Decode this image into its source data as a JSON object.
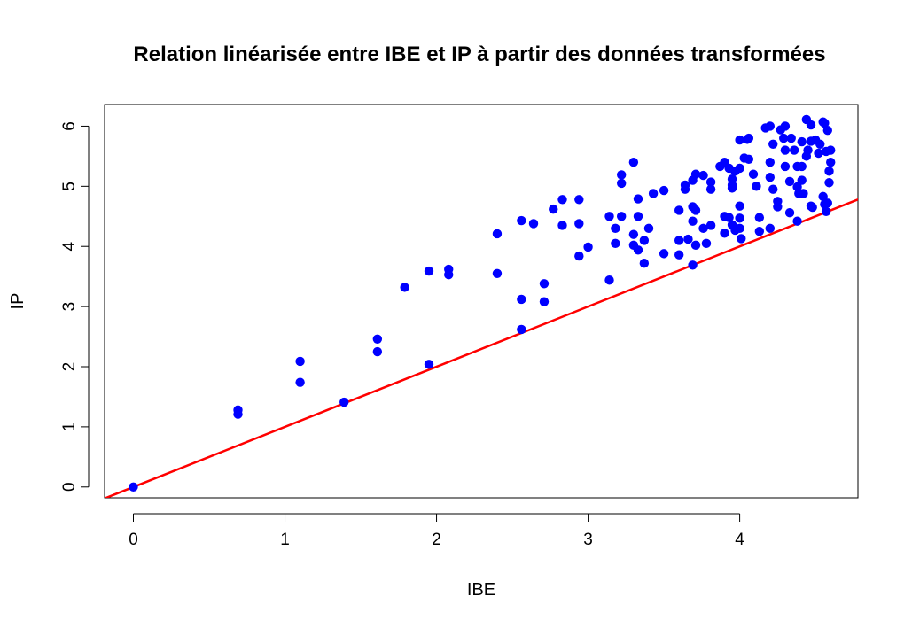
{
  "chart_data": {
    "type": "scatter",
    "title": "Relation linéarisée entre IBE et IP à partir des données transformées",
    "xlabel": "IBE",
    "ylabel": "IP",
    "xlim": [
      -0.19,
      4.78
    ],
    "ylim": [
      -0.18,
      6.36
    ],
    "xticks": [
      0,
      1,
      2,
      3,
      4
    ],
    "yticks": [
      0,
      1,
      2,
      3,
      4,
      5,
      6
    ],
    "grid": false,
    "legend": "none",
    "point_color": "#0000ff",
    "line_color": "#ff0000",
    "reference_line": {
      "slope": 1.0,
      "intercept": 0.0
    },
    "points": [
      [
        0.0,
        0.0
      ],
      [
        0.69,
        1.28
      ],
      [
        0.69,
        1.21
      ],
      [
        1.1,
        2.09
      ],
      [
        1.1,
        1.74
      ],
      [
        1.39,
        1.41
      ],
      [
        1.61,
        2.46
      ],
      [
        1.61,
        2.25
      ],
      [
        1.79,
        3.32
      ],
      [
        1.95,
        3.59
      ],
      [
        1.95,
        2.04
      ],
      [
        2.08,
        3.62
      ],
      [
        2.08,
        3.53
      ],
      [
        2.4,
        4.21
      ],
      [
        2.4,
        3.55
      ],
      [
        2.56,
        4.43
      ],
      [
        2.56,
        3.12
      ],
      [
        2.56,
        2.62
      ],
      [
        2.64,
        4.38
      ],
      [
        2.71,
        3.38
      ],
      [
        2.71,
        3.08
      ],
      [
        2.77,
        4.62
      ],
      [
        2.83,
        4.78
      ],
      [
        2.83,
        4.35
      ],
      [
        2.94,
        4.78
      ],
      [
        2.94,
        4.38
      ],
      [
        2.94,
        3.84
      ],
      [
        3.0,
        3.99
      ],
      [
        3.14,
        4.5
      ],
      [
        3.14,
        3.44
      ],
      [
        3.18,
        4.3
      ],
      [
        3.18,
        4.05
      ],
      [
        3.22,
        5.19
      ],
      [
        3.22,
        5.05
      ],
      [
        3.22,
        4.5
      ],
      [
        3.3,
        5.4
      ],
      [
        3.3,
        4.2
      ],
      [
        3.3,
        4.02
      ],
      [
        3.33,
        4.79
      ],
      [
        3.33,
        4.5
      ],
      [
        3.33,
        3.94
      ],
      [
        3.37,
        4.1
      ],
      [
        3.37,
        3.72
      ],
      [
        3.4,
        4.3
      ],
      [
        3.43,
        4.88
      ],
      [
        3.5,
        4.93
      ],
      [
        3.5,
        3.88
      ],
      [
        3.6,
        4.6
      ],
      [
        3.6,
        4.1
      ],
      [
        3.6,
        3.86
      ],
      [
        3.64,
        4.95
      ],
      [
        3.64,
        5.02
      ],
      [
        3.66,
        4.12
      ],
      [
        3.69,
        5.1
      ],
      [
        3.69,
        4.66
      ],
      [
        3.69,
        4.42
      ],
      [
        3.69,
        3.69
      ],
      [
        3.71,
        5.2
      ],
      [
        3.71,
        4.6
      ],
      [
        3.71,
        4.02
      ],
      [
        3.76,
        5.18
      ],
      [
        3.76,
        4.3
      ],
      [
        3.78,
        4.05
      ],
      [
        3.81,
        5.07
      ],
      [
        3.81,
        4.95
      ],
      [
        3.81,
        4.35
      ],
      [
        3.87,
        5.33
      ],
      [
        3.9,
        5.4
      ],
      [
        3.9,
        4.22
      ],
      [
        3.9,
        4.5
      ],
      [
        3.93,
        5.3
      ],
      [
        3.93,
        4.48
      ],
      [
        3.95,
        5.02
      ],
      [
        3.95,
        5.12
      ],
      [
        3.95,
        4.97
      ],
      [
        3.95,
        4.36
      ],
      [
        3.97,
        5.25
      ],
      [
        3.97,
        4.27
      ],
      [
        4.0,
        5.77
      ],
      [
        4.0,
        5.3
      ],
      [
        4.0,
        4.67
      ],
      [
        4.0,
        4.47
      ],
      [
        4.0,
        4.3
      ],
      [
        4.01,
        4.13
      ],
      [
        4.03,
        5.47
      ],
      [
        4.05,
        5.78
      ],
      [
        4.06,
        5.8
      ],
      [
        4.06,
        5.45
      ],
      [
        4.09,
        5.2
      ],
      [
        4.11,
        5.0
      ],
      [
        4.13,
        4.48
      ],
      [
        4.13,
        4.25
      ],
      [
        4.17,
        5.97
      ],
      [
        4.2,
        6.0
      ],
      [
        4.2,
        5.4
      ],
      [
        4.2,
        5.15
      ],
      [
        4.2,
        4.3
      ],
      [
        4.22,
        5.7
      ],
      [
        4.22,
        4.95
      ],
      [
        4.25,
        4.75
      ],
      [
        4.25,
        4.66
      ],
      [
        4.27,
        5.94
      ],
      [
        4.29,
        5.8
      ],
      [
        4.3,
        6.0
      ],
      [
        4.3,
        5.6
      ],
      [
        4.3,
        5.33
      ],
      [
        4.33,
        5.08
      ],
      [
        4.33,
        4.56
      ],
      [
        4.34,
        5.8
      ],
      [
        4.36,
        5.6
      ],
      [
        4.38,
        5.33
      ],
      [
        4.38,
        4.99
      ],
      [
        4.38,
        4.42
      ],
      [
        4.39,
        4.88
      ],
      [
        4.41,
        5.74
      ],
      [
        4.41,
        5.33
      ],
      [
        4.41,
        5.1
      ],
      [
        4.42,
        4.88
      ],
      [
        4.44,
        6.11
      ],
      [
        4.44,
        5.5
      ],
      [
        4.45,
        5.6
      ],
      [
        4.47,
        6.02
      ],
      [
        4.47,
        5.75
      ],
      [
        4.47,
        4.67
      ],
      [
        4.48,
        4.65
      ],
      [
        4.5,
        5.77
      ],
      [
        4.52,
        5.55
      ],
      [
        4.53,
        5.7
      ],
      [
        4.55,
        6.07
      ],
      [
        4.55,
        4.83
      ],
      [
        4.56,
        6.05
      ],
      [
        4.56,
        4.7
      ],
      [
        4.57,
        5.58
      ],
      [
        4.57,
        4.58
      ],
      [
        4.58,
        5.93
      ],
      [
        4.58,
        4.72
      ],
      [
        4.59,
        5.25
      ],
      [
        4.59,
        5.06
      ],
      [
        4.6,
        5.6
      ],
      [
        4.6,
        5.4
      ]
    ]
  }
}
